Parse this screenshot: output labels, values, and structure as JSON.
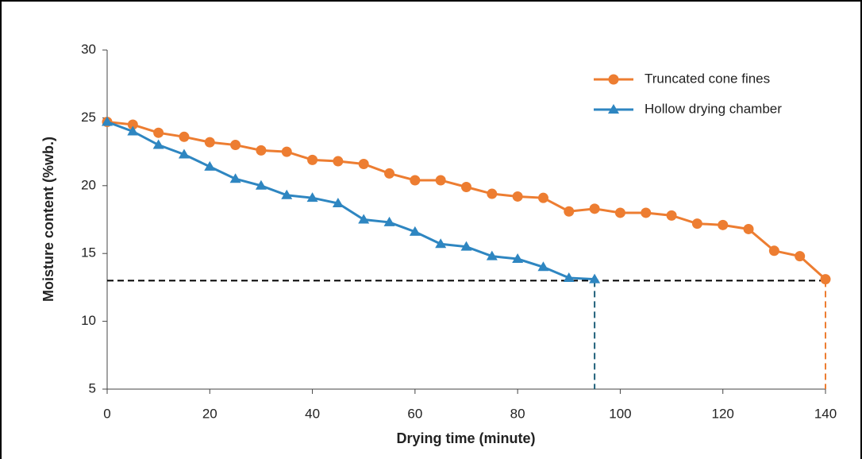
{
  "chart_data": {
    "type": "line",
    "x_label": "Drying time (minute)",
    "y_label": "Moisture content (%wb.)",
    "x": [
      0,
      5,
      10,
      15,
      20,
      25,
      30,
      35,
      40,
      45,
      50,
      55,
      60,
      65,
      70,
      75,
      80,
      85,
      90,
      95,
      100,
      105,
      110,
      115,
      120,
      125,
      130,
      135,
      140
    ],
    "series": [
      {
        "name": "Truncated cone fines",
        "color": "#ed7d31",
        "marker": "circle",
        "values": [
          24.7,
          24.5,
          23.9,
          23.6,
          23.2,
          23.0,
          22.6,
          22.5,
          21.9,
          21.8,
          21.6,
          20.9,
          20.4,
          20.4,
          19.9,
          19.4,
          19.2,
          19.1,
          18.1,
          18.3,
          18.0,
          18.0,
          17.8,
          17.2,
          17.1,
          16.8,
          15.2,
          14.8,
          13.1
        ]
      },
      {
        "name": "Hollow drying chamber",
        "color": "#2e86c1",
        "marker": "triangle",
        "values": [
          24.7,
          24.0,
          23.0,
          22.3,
          21.4,
          20.5,
          20.0,
          19.3,
          19.1,
          18.7,
          17.5,
          17.3,
          16.6,
          15.7,
          15.5,
          14.8,
          14.6,
          14.0,
          13.2,
          13.1,
          null,
          null,
          null,
          null,
          null,
          null,
          null,
          null,
          null
        ]
      }
    ],
    "hline": {
      "y": 13,
      "color": "#000000"
    },
    "vlines": [
      {
        "x": 95,
        "color": "#1f5f7a"
      },
      {
        "x": 140,
        "color": "#ed7d31"
      }
    ],
    "xlim": [
      0,
      140
    ],
    "xticks": [
      0,
      20,
      40,
      60,
      80,
      100,
      120,
      140
    ],
    "ylim": [
      5,
      30
    ],
    "yticks": [
      5,
      10,
      15,
      20,
      25,
      30
    ],
    "legend": "top-right"
  }
}
